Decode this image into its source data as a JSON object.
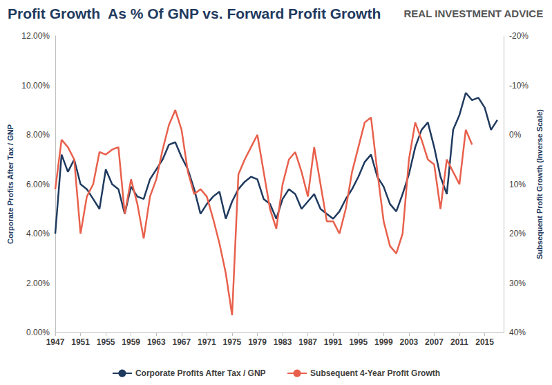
{
  "chart_data": {
    "type": "line",
    "title": "Profit Growth  As % Of GNP vs. Forward Profit Growth",
    "annotations": [
      "REAL INVESTMENT ADVICE"
    ],
    "y_label": "Corporate Profits After Tax / GNP",
    "y2_label": "Subsequent Profit Growth (Inverse Scale)",
    "x": [
      1947,
      1948,
      1949,
      1950,
      1951,
      1952,
      1953,
      1954,
      1955,
      1956,
      1957,
      1958,
      1959,
      1960,
      1961,
      1962,
      1963,
      1964,
      1965,
      1966,
      1967,
      1968,
      1969,
      1970,
      1971,
      1972,
      1973,
      1974,
      1975,
      1976,
      1977,
      1978,
      1979,
      1980,
      1981,
      1982,
      1983,
      1984,
      1985,
      1986,
      1987,
      1988,
      1989,
      1990,
      1991,
      1992,
      1993,
      1994,
      1995,
      1996,
      1997,
      1998,
      1999,
      2000,
      2001,
      2002,
      2003,
      2004,
      2005,
      2006,
      2007,
      2008,
      2009,
      2010,
      2011,
      2012,
      2013,
      2014,
      2015,
      2016,
      2017
    ],
    "xlim": [
      1947,
      2018
    ],
    "xticks": [
      1947,
      1951,
      1955,
      1959,
      1963,
      1967,
      1971,
      1975,
      1979,
      1983,
      1987,
      1991,
      1995,
      1999,
      2003,
      2007,
      2011,
      2015
    ],
    "ylim": [
      0,
      12
    ],
    "yticks": [
      {
        "value": 0,
        "label": "0.00%"
      },
      {
        "value": 2,
        "label": "2.00%"
      },
      {
        "value": 4,
        "label": "4.00%"
      },
      {
        "value": 6,
        "label": "6.00%"
      },
      {
        "value": 8,
        "label": "8.00%"
      },
      {
        "value": 10,
        "label": "10.00%"
      },
      {
        "value": 12,
        "label": "12.00%"
      }
    ],
    "y2lim": [
      -20,
      40
    ],
    "y2ticks": [
      {
        "value": -20,
        "label": "-20%"
      },
      {
        "value": -10,
        "label": "-10%"
      },
      {
        "value": 0,
        "label": "0%"
      },
      {
        "value": 10,
        "label": "10%"
      },
      {
        "value": 20,
        "label": "20%"
      },
      {
        "value": 30,
        "label": "30%"
      },
      {
        "value": 40,
        "label": "40%"
      }
    ],
    "grid": false,
    "legend": "bottom",
    "series": [
      {
        "name": "Corporate Profits After Tax / GNP",
        "color": "#1f3a5f",
        "values": [
          4.0,
          7.2,
          6.5,
          7.0,
          6.0,
          5.8,
          5.4,
          5.0,
          6.6,
          6.0,
          5.8,
          4.8,
          5.9,
          5.5,
          5.4,
          6.2,
          6.6,
          7.0,
          7.6,
          7.7,
          7.1,
          6.6,
          5.8,
          4.8,
          5.2,
          5.5,
          5.7,
          4.6,
          5.3,
          5.8,
          6.1,
          6.3,
          6.2,
          5.4,
          5.2,
          4.6,
          5.4,
          5.8,
          5.6,
          5.0,
          5.3,
          5.6,
          5.0,
          4.8,
          4.6,
          4.9,
          5.4,
          5.8,
          6.3,
          6.9,
          7.2,
          6.3,
          5.9,
          5.2,
          4.9,
          5.6,
          6.4,
          7.5,
          8.2,
          8.5,
          7.5,
          6.3,
          5.6,
          8.2,
          8.8,
          9.7,
          9.4,
          9.5,
          9.1,
          8.2,
          8.6
        ]
      },
      {
        "name": "Subsequent 4-Year Profit Growth",
        "color": "#e8604c",
        "axis": "y2",
        "values": [
          11,
          1,
          2.5,
          5,
          20,
          12.5,
          10,
          3.5,
          4,
          3,
          2.5,
          16,
          9,
          14,
          21,
          12.5,
          9,
          3,
          -2,
          -5,
          -1,
          7.5,
          12,
          11,
          12.5,
          17,
          22,
          28,
          36.5,
          8,
          5,
          2.5,
          0,
          7.5,
          15,
          19,
          10,
          5,
          3.5,
          7.5,
          12.5,
          2.5,
          10,
          17.5,
          17.5,
          20,
          15,
          7.5,
          2.5,
          -2.5,
          -3.5,
          7.5,
          17.5,
          22.5,
          24,
          20,
          5,
          -2.5,
          1,
          5,
          6,
          15,
          5,
          7.5,
          10,
          -1,
          2,
          null,
          null,
          null,
          null
        ]
      }
    ]
  }
}
